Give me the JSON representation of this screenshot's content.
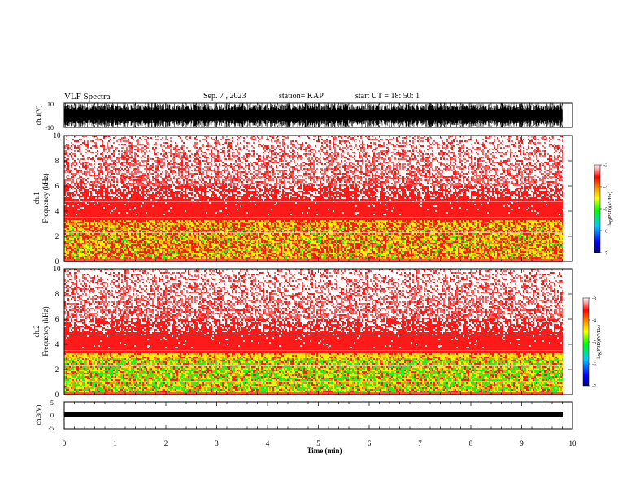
{
  "header": {
    "title": "VLF Spectra",
    "date": "Sep. 7 , 2023",
    "station": "station= KAP",
    "start_time": "start  UT =   18: 50: 1"
  },
  "colors": {
    "low": "#0000cc",
    "mid": "#00ee00",
    "high": "#ffee00",
    "red": "#ff1a1a",
    "background": "#ffffff"
  },
  "chart_data": [
    {
      "type": "line",
      "panel": "ch1-waveform",
      "ylabel": "ch.1(V)",
      "ylim": [
        -10,
        10
      ],
      "yticks": [
        10,
        -10
      ],
      "xlim": [
        0,
        10
      ]
    },
    {
      "type": "heatmap",
      "panel": "ch1-spectrogram",
      "ylabel_line1": "ch.1",
      "ylabel_line2": "Frequency  (kHz)",
      "ylim": [
        0,
        10
      ],
      "yticks": [
        0,
        2,
        4,
        6,
        8,
        10
      ],
      "xlim": [
        0,
        9.8
      ],
      "colorbar": {
        "label": "log(PSD)(V²/Hz)",
        "range": [
          -7,
          -3
        ],
        "ticks": [
          -3,
          -4,
          -5,
          -6,
          -7
        ]
      }
    },
    {
      "type": "heatmap",
      "panel": "ch2-spectrogram",
      "ylabel_line1": "ch.2",
      "ylabel_line2": "Frequency  (kHz)",
      "ylim": [
        0,
        10
      ],
      "yticks": [
        0,
        2,
        4,
        6,
        8,
        10
      ],
      "xlim": [
        0,
        9.8
      ],
      "colorbar": {
        "label": "log(PSD)(V²/Hz)",
        "range": [
          -7,
          -3
        ],
        "ticks": [
          -3,
          -4,
          -5,
          -6,
          -7
        ]
      }
    },
    {
      "type": "line",
      "panel": "ch3-waveform",
      "ylabel": "ch.3(V)",
      "ylim": [
        -5,
        5
      ],
      "yticks": [
        5,
        0,
        -5
      ],
      "xlim": [
        0,
        10
      ],
      "xlabel": "Time  (min)",
      "xticks": [
        0,
        1,
        2,
        3,
        4,
        5,
        6,
        7,
        8,
        9,
        10
      ]
    }
  ]
}
